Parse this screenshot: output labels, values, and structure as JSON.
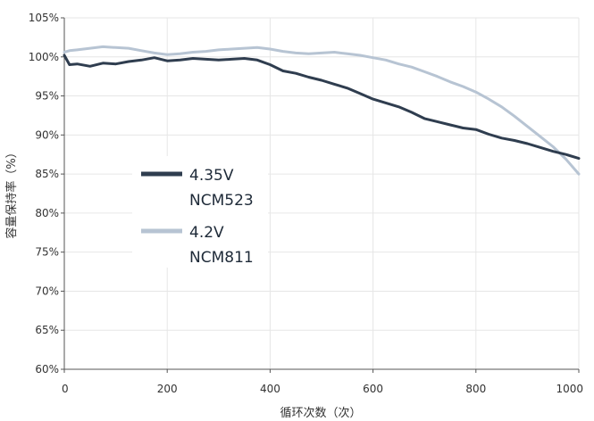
{
  "chart_data": {
    "type": "line",
    "xlabel": "循环次数（次）",
    "ylabel": "容量保持率（%）",
    "xlim": [
      0,
      1000
    ],
    "ylim": [
      60,
      105
    ],
    "x_ticks": [
      0,
      200,
      400,
      600,
      800,
      1000
    ],
    "x_tick_labels": [
      "0",
      "200",
      "400",
      "600",
      "800",
      "1000"
    ],
    "y_ticks": [
      60,
      65,
      70,
      75,
      80,
      85,
      90,
      95,
      100,
      105
    ],
    "y_tick_labels": [
      "60%",
      "65%",
      "70%",
      "75%",
      "80%",
      "85%",
      "90%",
      "95%",
      "100%",
      "105%"
    ],
    "grid": true,
    "legend_position": "center-left",
    "series": [
      {
        "name": "4.35V NCM523",
        "legend_lines": [
          "4.35V",
          "NCM523"
        ],
        "color": "#2f3d4f",
        "x": [
          0,
          10,
          25,
          50,
          75,
          100,
          125,
          150,
          175,
          200,
          225,
          250,
          275,
          300,
          325,
          350,
          375,
          400,
          425,
          450,
          475,
          500,
          525,
          550,
          575,
          600,
          625,
          650,
          675,
          700,
          725,
          750,
          775,
          800,
          825,
          850,
          875,
          900,
          925,
          950,
          975,
          1000
        ],
        "values": [
          100.2,
          99.0,
          99.1,
          98.8,
          99.2,
          99.1,
          99.4,
          99.6,
          99.9,
          99.5,
          99.6,
          99.8,
          99.7,
          99.6,
          99.7,
          99.8,
          99.6,
          99.0,
          98.2,
          97.9,
          97.4,
          97.0,
          96.5,
          96.0,
          95.3,
          94.6,
          94.1,
          93.6,
          92.9,
          92.1,
          91.7,
          91.3,
          90.9,
          90.7,
          90.1,
          89.6,
          89.3,
          88.9,
          88.4,
          87.9,
          87.5,
          87.0
        ]
      },
      {
        "name": "4.2V NCM811",
        "legend_lines": [
          "4.2V",
          "NCM811"
        ],
        "color": "#b7c4d3",
        "x": [
          0,
          10,
          25,
          50,
          75,
          100,
          125,
          150,
          175,
          200,
          225,
          250,
          275,
          300,
          325,
          350,
          375,
          400,
          425,
          450,
          475,
          500,
          525,
          550,
          575,
          600,
          625,
          650,
          675,
          700,
          725,
          750,
          775,
          800,
          825,
          850,
          875,
          900,
          925,
          950,
          975,
          1000
        ],
        "values": [
          100.6,
          100.8,
          100.9,
          101.1,
          101.3,
          101.2,
          101.1,
          100.8,
          100.5,
          100.3,
          100.4,
          100.6,
          100.7,
          100.9,
          101.0,
          101.1,
          101.2,
          101.0,
          100.7,
          100.5,
          100.4,
          100.5,
          100.6,
          100.4,
          100.2,
          99.9,
          99.6,
          99.1,
          98.7,
          98.1,
          97.5,
          96.8,
          96.2,
          95.5,
          94.6,
          93.6,
          92.4,
          91.1,
          89.8,
          88.5,
          86.9,
          85.0
        ]
      }
    ]
  }
}
